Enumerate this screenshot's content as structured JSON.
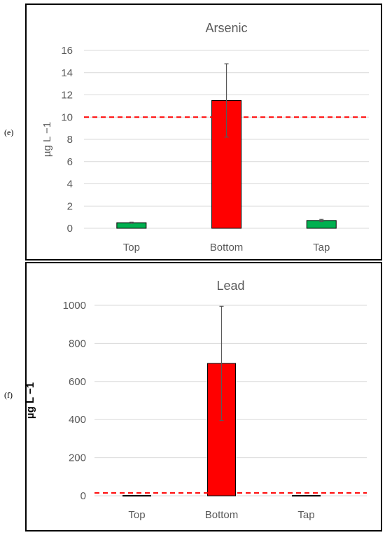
{
  "panels": [
    {
      "label": "(e)"
    },
    {
      "label": "(f)"
    }
  ],
  "chart_data": [
    {
      "type": "bar",
      "title": "Arsenic",
      "ylabel": "µg L −1",
      "xlabel": "",
      "categories": [
        "Top",
        "Bottom",
        "Tap"
      ],
      "values": [
        0.5,
        11.5,
        0.7
      ],
      "error": [
        0.05,
        3.3,
        0.1
      ],
      "bar_colors": [
        "#00b050",
        "#ff0000",
        "#00b050"
      ],
      "ylim": [
        0,
        16
      ],
      "yticks": [
        "0",
        "2",
        "4",
        "6",
        "8",
        "10",
        "12",
        "14",
        "16"
      ],
      "reference_line": 10,
      "reference_color": "#ff0000",
      "grid": true
    },
    {
      "type": "bar",
      "title": "Lead",
      "ylabel": "µg L −1",
      "xlabel": "",
      "categories": [
        "Top",
        "Bottom",
        "Tap"
      ],
      "values": [
        2,
        695,
        2
      ],
      "error": [
        0,
        300,
        0
      ],
      "bar_colors": [
        "#ff0000",
        "#ff0000",
        "#ff0000"
      ],
      "ylim": [
        0,
        1000
      ],
      "yticks": [
        "0",
        "200",
        "400",
        "600",
        "800",
        "1000"
      ],
      "reference_line": 15,
      "reference_color": "#ff0000",
      "grid": true
    }
  ]
}
